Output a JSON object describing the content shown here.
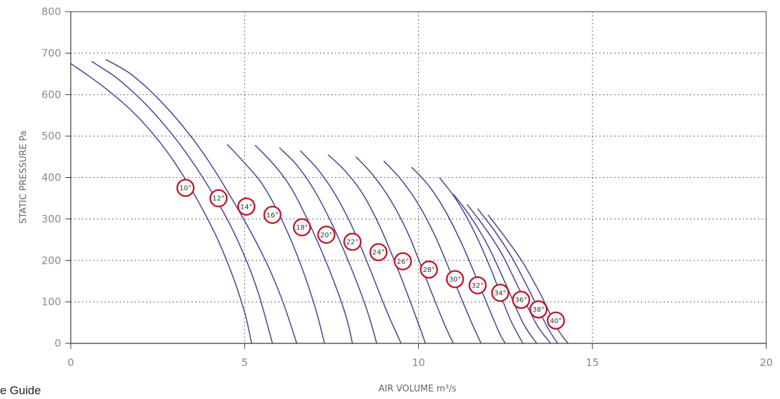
{
  "chart_data": {
    "type": "line",
    "xlabel": "AIR VOLUME m³/s",
    "ylabel": "STATIC PRESSURE Pa",
    "xlim": [
      0,
      20
    ],
    "ylim": [
      0,
      800
    ],
    "xticks": [
      "0",
      "5",
      "10",
      "15",
      "20"
    ],
    "yticks": [
      "0",
      "100",
      "200",
      "300",
      "400",
      "500",
      "600",
      "700",
      "800"
    ],
    "grid": "dotted",
    "curve_color": "#4b4b9a",
    "label_color": "#c0182e",
    "series": [
      {
        "name": "10°",
        "label_at": [
          3.3,
          375
        ],
        "x": [
          0,
          1.0,
          2.0,
          3.0,
          4.0,
          4.6,
          5.0,
          5.2
        ],
        "y": [
          675,
          615,
          540,
          435,
          290,
          175,
          75,
          0
        ]
      },
      {
        "name": "12°",
        "label_at": [
          4.25,
          350
        ],
        "x": [
          0.6,
          1.4,
          2.4,
          3.4,
          4.4,
          5.0,
          5.4,
          5.8
        ],
        "y": [
          680,
          635,
          555,
          450,
          315,
          210,
          120,
          0
        ]
      },
      {
        "name": "14°",
        "label_at": [
          5.05,
          330
        ],
        "x": [
          1.0,
          1.8,
          2.8,
          3.8,
          4.8,
          5.6,
          6.1,
          6.5
        ],
        "y": [
          685,
          645,
          565,
          460,
          325,
          200,
          100,
          0
        ]
      },
      {
        "name": "16°",
        "label_at": [
          5.8,
          310
        ],
        "x": [
          4.5,
          5.0,
          5.5,
          6.0,
          6.5,
          7.0,
          7.3
        ],
        "y": [
          480,
          435,
          385,
          310,
          215,
          95,
          0
        ]
      },
      {
        "name": "18°",
        "label_at": [
          6.65,
          280
        ],
        "x": [
          5.3,
          5.8,
          6.3,
          6.8,
          7.4,
          7.9,
          8.1
        ],
        "y": [
          478,
          435,
          380,
          300,
          185,
          70,
          0
        ]
      },
      {
        "name": "20°",
        "label_at": [
          7.35,
          262
        ],
        "x": [
          6.0,
          6.5,
          7.0,
          7.5,
          8.0,
          8.5,
          8.8
        ],
        "y": [
          472,
          430,
          370,
          290,
          195,
          85,
          0
        ]
      },
      {
        "name": "22°",
        "label_at": [
          8.1,
          245
        ],
        "x": [
          6.6,
          7.1,
          7.6,
          8.1,
          8.6,
          9.1,
          9.5
        ],
        "y": [
          465,
          420,
          360,
          280,
          180,
          75,
          0
        ]
      },
      {
        "name": "24°",
        "label_at": [
          8.85,
          220
        ],
        "x": [
          7.4,
          7.9,
          8.4,
          8.9,
          9.4,
          9.9,
          10.2
        ],
        "y": [
          455,
          415,
          360,
          280,
          180,
          70,
          0
        ]
      },
      {
        "name": "26°",
        "label_at": [
          9.55,
          198
        ],
        "x": [
          8.2,
          8.7,
          9.2,
          9.7,
          10.2,
          10.7,
          11.0
        ],
        "y": [
          450,
          405,
          345,
          265,
          160,
          55,
          0
        ]
      },
      {
        "name": "28°",
        "label_at": [
          10.3,
          178
        ],
        "x": [
          9.0,
          9.5,
          10.0,
          10.5,
          11.0,
          11.5,
          11.8
        ],
        "y": [
          440,
          395,
          335,
          255,
          155,
          55,
          0
        ]
      },
      {
        "name": "30°",
        "label_at": [
          11.05,
          155
        ],
        "x": [
          9.8,
          10.3,
          10.8,
          11.3,
          11.8,
          12.3,
          12.5
        ],
        "y": [
          425,
          380,
          315,
          230,
          130,
          30,
          0
        ]
      },
      {
        "name": "32°",
        "label_at": [
          11.7,
          140
        ],
        "x": [
          10.6,
          11.1,
          11.6,
          12.1,
          12.6,
          13.0
        ],
        "y": [
          400,
          345,
          270,
          175,
          65,
          0
        ]
      },
      {
        "name": "34°",
        "label_at": [
          12.35,
          122
        ],
        "x": [
          11.0,
          11.5,
          12.0,
          12.5,
          13.0,
          13.4
        ],
        "y": [
          360,
          305,
          235,
          145,
          50,
          0
        ]
      },
      {
        "name": "36°",
        "label_at": [
          12.95,
          105
        ],
        "x": [
          11.4,
          11.9,
          12.4,
          12.9,
          13.4,
          13.8
        ],
        "y": [
          335,
          280,
          215,
          130,
          45,
          0
        ]
      },
      {
        "name": "38°",
        "label_at": [
          13.45,
          82
        ],
        "x": [
          11.7,
          12.2,
          12.7,
          13.2,
          13.7,
          14.0
        ],
        "y": [
          325,
          270,
          205,
          125,
          40,
          0
        ]
      },
      {
        "name": "40°",
        "label_at": [
          13.95,
          55
        ],
        "x": [
          12.0,
          12.5,
          13.0,
          13.5,
          14.0,
          14.3
        ],
        "y": [
          310,
          255,
          195,
          120,
          35,
          0
        ]
      }
    ]
  },
  "footer_text": "e Guide"
}
